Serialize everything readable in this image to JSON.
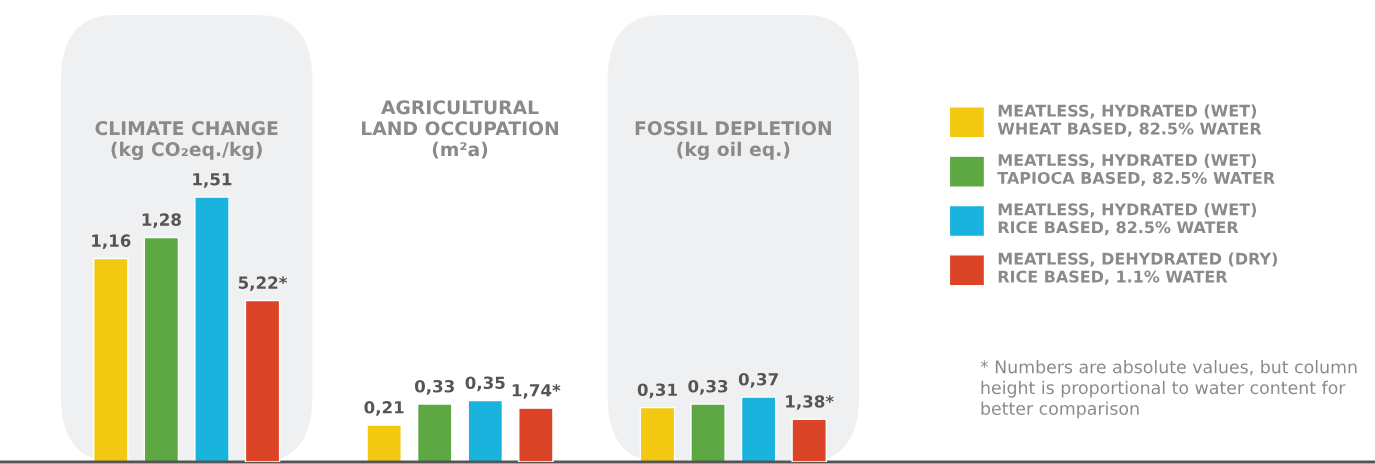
{
  "chart_data": {
    "type": "bar",
    "categories": [
      "CLIMATE CHANGE\n(kg CO₂eq./kg)",
      "AGRICULTURAL\nLAND OCCUPATION\n(m²a)",
      "FOSSIL DEPLETION\n(kg oil eq.)"
    ],
    "series": [
      {
        "name": "MEATLESS, HYDRATED (WET)\nWHEAT BASED, 82.5% WATER",
        "color": "#f2c811",
        "values": [
          1.16,
          0.21,
          0.31
        ],
        "value_labels": [
          "1,16",
          "0,21",
          "0,31"
        ]
      },
      {
        "name": "MEATLESS, HYDRATED (WET)\nTAPIOCA BASED, 82.5% WATER",
        "color": "#5ea843",
        "values": [
          1.28,
          0.33,
          0.33
        ],
        "value_labels": [
          "1,28",
          "0,33",
          "0,33"
        ]
      },
      {
        "name": "MEATLESS, HYDRATED (WET)\nRICE BASED, 82.5% WATER",
        "color": "#1ab3dd",
        "values": [
          1.51,
          0.35,
          0.37
        ],
        "value_labels": [
          "1,51",
          "0,35",
          "0,37"
        ]
      },
      {
        "name": "MEATLESS, DEHYDRATED (DRY)\nRICE BASED, 1.1% WATER",
        "color": "#dc4427",
        "axis": "y2",
        "values": [
          5.22,
          1.74,
          1.38
        ],
        "value_labels": [
          "5,22*",
          "1,74*",
          "1,38*"
        ]
      }
    ],
    "bands": [
      {
        "axis": "x",
        "from": "CLIMATE CHANGE\n(kg CO₂eq./kg)",
        "to": "CLIMATE CHANGE\n(kg CO₂eq./kg)",
        "color": "#eff0f2"
      },
      {
        "axis": "x",
        "from": "FOSSIL DEPLETION\n(kg oil eq.)",
        "to": "FOSSIL DEPLETION\n(kg oil eq.)",
        "color": "#eff0f2"
      }
    ],
    "legend": "right",
    "annotations": [
      "* Numbers are absolute values, but column height is proportional to water content for better comparison"
    ]
  }
}
